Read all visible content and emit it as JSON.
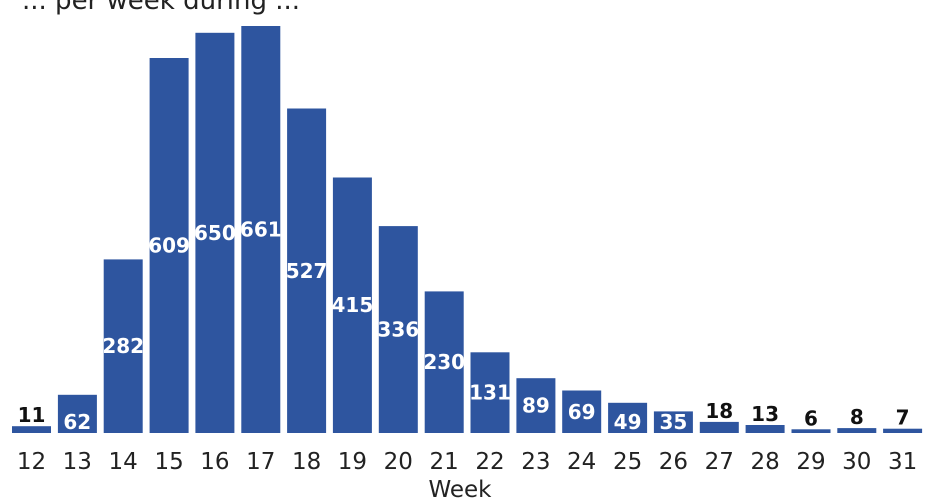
{
  "chart_data": {
    "type": "bar",
    "title": "... per week during ...",
    "xlabel": "Week",
    "ylabel": "",
    "categories": [
      "12",
      "13",
      "14",
      "15",
      "16",
      "17",
      "18",
      "19",
      "20",
      "21",
      "22",
      "23",
      "24",
      "25",
      "26",
      "27",
      "28",
      "29",
      "30",
      "31"
    ],
    "values": [
      11,
      62,
      282,
      609,
      650,
      661,
      527,
      415,
      336,
      230,
      131,
      89,
      69,
      49,
      35,
      18,
      13,
      6,
      8,
      7
    ],
    "ylim": [
      0,
      661
    ],
    "grid": false,
    "legend": "none",
    "bar_color": "#2e559f"
  }
}
